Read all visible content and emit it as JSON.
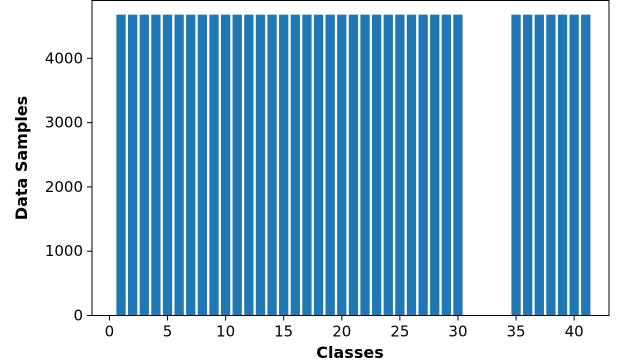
{
  "chart_data": {
    "type": "bar",
    "xlabel": "Classes",
    "ylabel": "Data Samples",
    "x": [
      1,
      2,
      3,
      4,
      5,
      6,
      7,
      8,
      9,
      10,
      11,
      12,
      13,
      14,
      15,
      16,
      17,
      18,
      19,
      20,
      21,
      22,
      23,
      24,
      25,
      26,
      27,
      28,
      29,
      30,
      35,
      36,
      37,
      38,
      39,
      40,
      41
    ],
    "values": [
      4680,
      4680,
      4680,
      4680,
      4680,
      4680,
      4680,
      4680,
      4680,
      4680,
      4680,
      4680,
      4680,
      4680,
      4680,
      4680,
      4680,
      4680,
      4680,
      4680,
      4680,
      4680,
      4680,
      4680,
      4680,
      4680,
      4680,
      4680,
      4680,
      4680,
      4680,
      4680,
      4680,
      4680,
      4680,
      4680,
      4680
    ],
    "xlim": [
      -1.5,
      43
    ],
    "ylim": [
      0,
      4900
    ],
    "xticks": [
      0,
      5,
      10,
      15,
      20,
      25,
      30,
      35,
      40
    ],
    "yticks": [
      0,
      1000,
      2000,
      3000,
      4000
    ],
    "grid": false,
    "bar_color": "#1f77b4"
  }
}
